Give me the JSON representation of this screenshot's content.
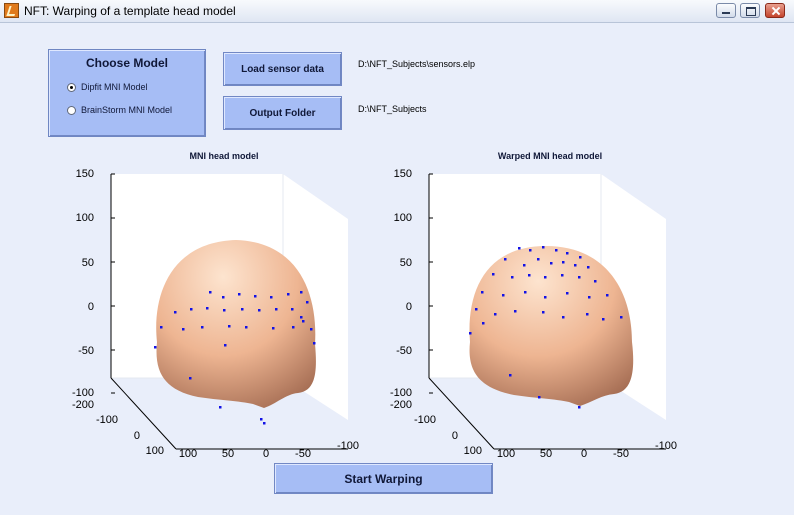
{
  "window": {
    "title": "NFT: Warping of a template head model",
    "icon": "matlab-icon",
    "controls": [
      "minimize-icon",
      "maximize-icon",
      "close-icon"
    ]
  },
  "choose_model": {
    "title": "Choose Model",
    "options": [
      {
        "label": "Dipfit MNI Model",
        "selected": true
      },
      {
        "label": "BrainStorm MNI Model",
        "selected": false
      }
    ]
  },
  "buttons": {
    "load_sensor": "Load sensor data",
    "output_folder": "Output Folder",
    "start": "Start Warping"
  },
  "paths": {
    "sensor_file": "D:\\NFT_Subjects\\sensors.elp",
    "output_dir": "D:\\NFT_Subjects"
  },
  "colors": {
    "background": "#e9eefa",
    "button_face": "#a6bdf5",
    "head_skin": "#f3c0a0",
    "sensor_dots": "#1010e8"
  },
  "plots": [
    {
      "title": "MNI head model",
      "z_ticks": [
        "150",
        "100",
        "50",
        "0",
        "-50",
        "-100"
      ],
      "x_ticks": [
        "100",
        "50",
        "0",
        "-50",
        "-100"
      ],
      "y_ticks": [
        "-200",
        "-100",
        "0",
        "100"
      ]
    },
    {
      "title": "Warped MNI head model",
      "z_ticks": [
        "150",
        "100",
        "50",
        "0",
        "-50",
        "-100"
      ],
      "x_ticks": [
        "100",
        "50",
        "0",
        "-50",
        "-100"
      ],
      "y_ticks": [
        "-200",
        "-100",
        "0",
        "100"
      ]
    }
  ]
}
